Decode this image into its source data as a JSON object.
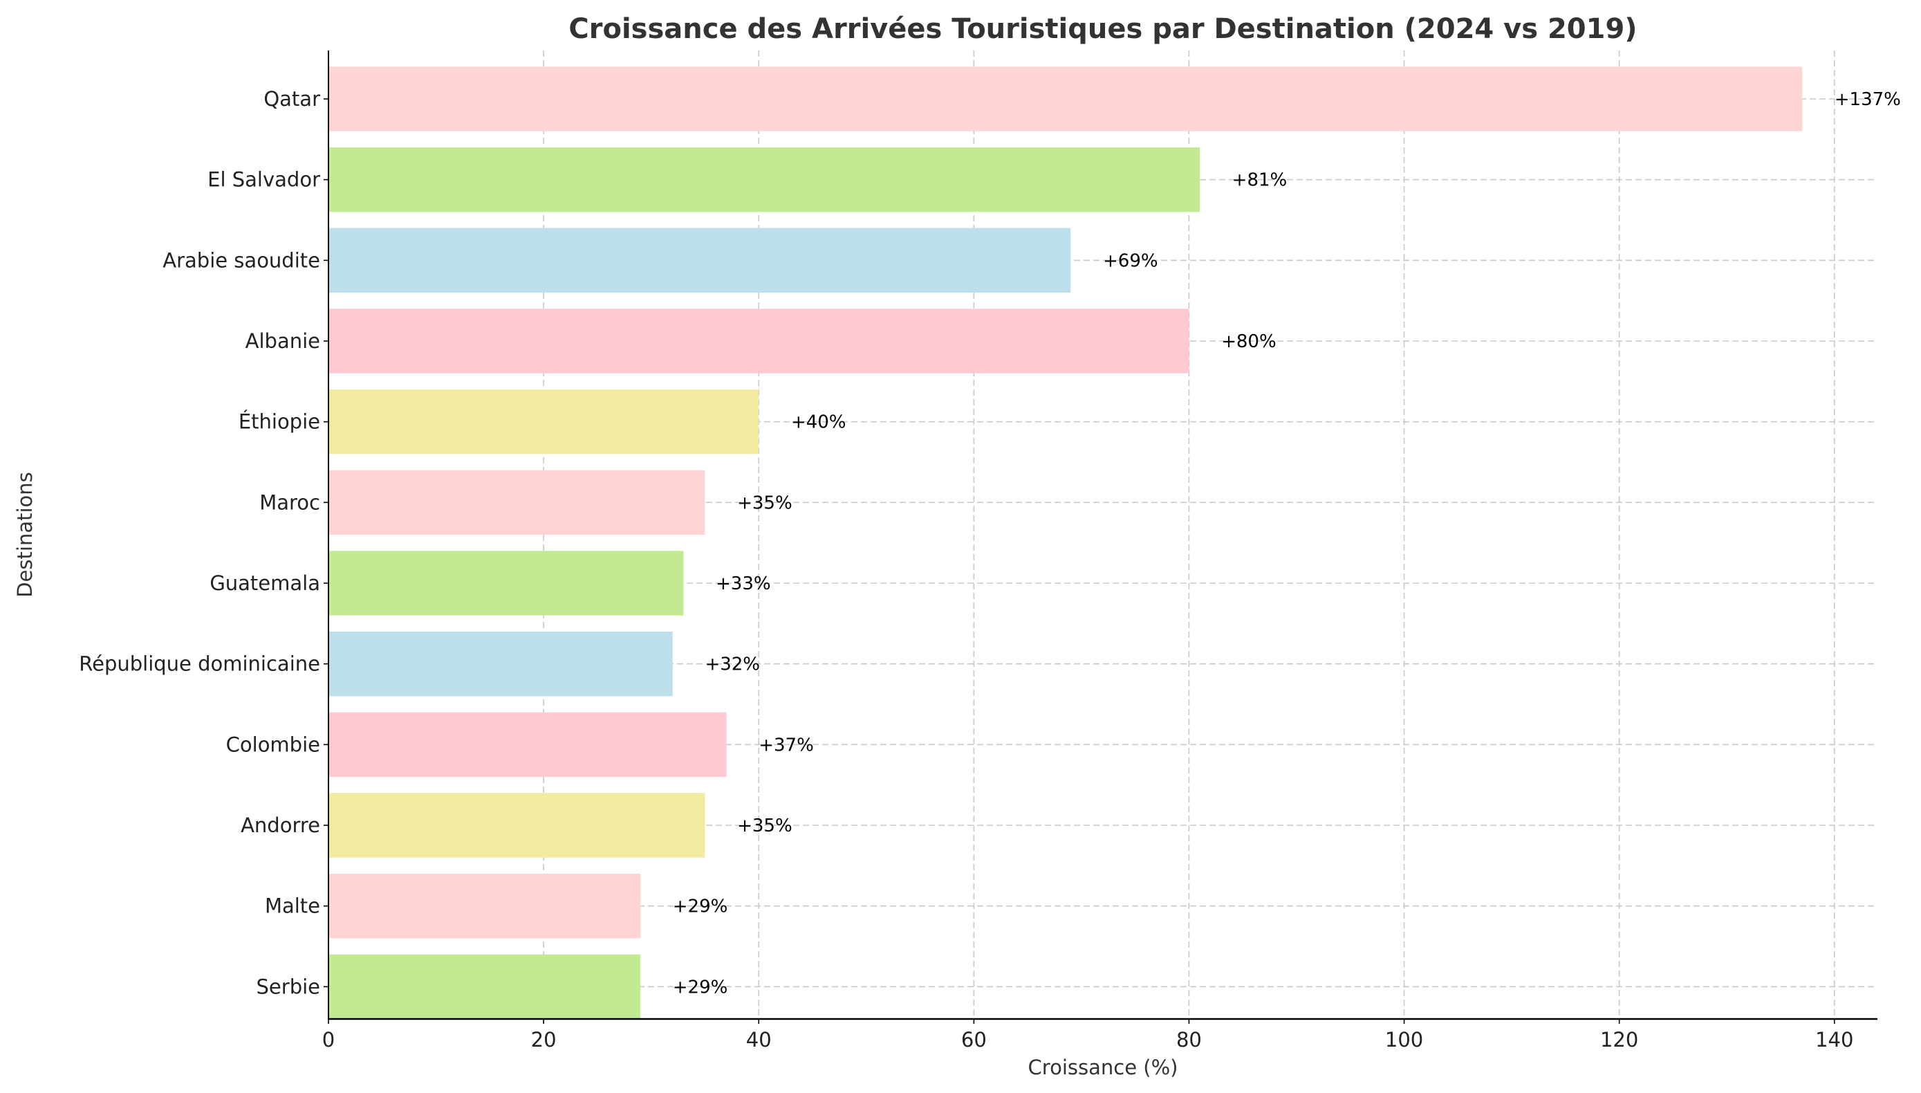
{
  "chart_data": {
    "type": "bar",
    "orientation": "horizontal",
    "title": "Croissance des Arrivées Touristiques par Destination (2024 vs 2019)",
    "xlabel": "Croissance (%)",
    "ylabel": "Destinations",
    "categories": [
      "Qatar",
      "El Salvador",
      "Arabie saoudite",
      "Albanie",
      "Éthiopie",
      "Maroc",
      "Guatemala",
      "République dominicaine",
      "Colombie",
      "Andorre",
      "Malte",
      "Serbie"
    ],
    "values": [
      137,
      81,
      69,
      80,
      40,
      35,
      33,
      32,
      37,
      35,
      29,
      29
    ],
    "data_labels": [
      "+137%",
      "+81%",
      "+69%",
      "+80%",
      "+40%",
      "+35%",
      "+33%",
      "+32%",
      "+37%",
      "+35%",
      "+29%",
      "+29%"
    ],
    "colors": [
      "#ffd4d4",
      "#c1ea92",
      "#bddfeb",
      "#ffc9d4",
      "#f2ea9f",
      "#ffd4d4",
      "#c1ea92",
      "#bddfeb",
      "#ffc9d4",
      "#f2ea9f",
      "#ffd4d4",
      "#c1ea92"
    ],
    "xlim": [
      0,
      144
    ],
    "xticks": [
      0,
      20,
      40,
      60,
      80,
      100,
      120,
      140
    ],
    "grid": true,
    "legend": "none"
  }
}
